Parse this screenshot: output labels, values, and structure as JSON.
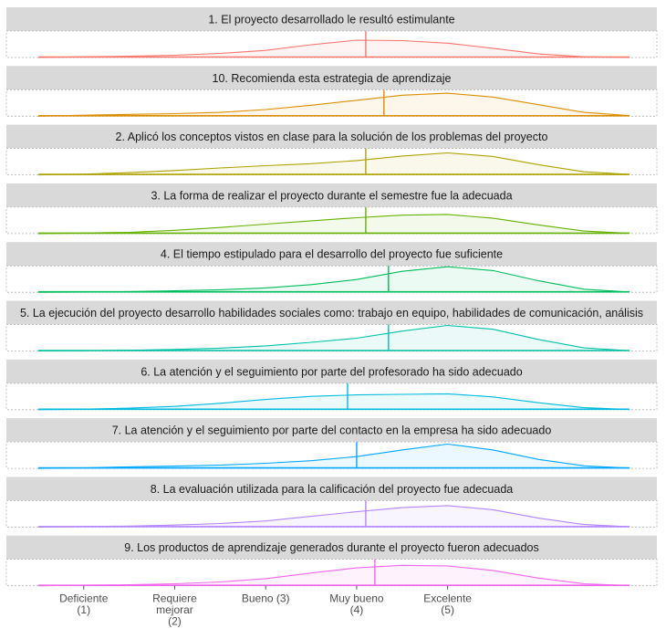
{
  "chart_data": {
    "type": "area",
    "subtype": "faceted density ridges with median line",
    "x_ticks": [
      {
        "value": 1,
        "lines": [
          "Deficiente",
          "(1)"
        ]
      },
      {
        "value": 2,
        "lines": [
          "Requiere",
          "mejorar",
          "(2)"
        ]
      },
      {
        "value": 3,
        "lines": [
          "Bueno (3)"
        ]
      },
      {
        "value": 4,
        "lines": [
          "Muy bueno",
          "(4)"
        ]
      },
      {
        "value": 5,
        "lines": [
          "Excelente",
          "(5)"
        ]
      }
    ],
    "xlim": [
      0.15,
      7.3
    ],
    "grid": false,
    "legend": "none",
    "panels": [
      {
        "title": "1. El proyecto desarrollado le resultó estimulante",
        "color": "#F8766D",
        "median": 4.1,
        "density": [
          [
            0.5,
            0
          ],
          [
            1,
            0.03
          ],
          [
            1.5,
            0.05
          ],
          [
            2,
            0.09
          ],
          [
            2.5,
            0.16
          ],
          [
            3,
            0.28
          ],
          [
            3.5,
            0.5
          ],
          [
            4,
            0.68
          ],
          [
            4.5,
            0.66
          ],
          [
            5,
            0.56
          ],
          [
            5.5,
            0.36
          ],
          [
            6,
            0.14
          ],
          [
            6.5,
            0.03
          ],
          [
            7,
            0
          ]
        ]
      },
      {
        "title": "10. Recomienda esta estrategia de aprendizaje",
        "color": "#DB8E00",
        "median": 4.3,
        "density": [
          [
            0.5,
            0
          ],
          [
            1,
            0.04
          ],
          [
            1.5,
            0.07
          ],
          [
            2,
            0.1
          ],
          [
            2.5,
            0.15
          ],
          [
            3,
            0.26
          ],
          [
            3.5,
            0.43
          ],
          [
            4,
            0.62
          ],
          [
            4.5,
            0.82
          ],
          [
            5,
            0.9
          ],
          [
            5.5,
            0.75
          ],
          [
            6,
            0.45
          ],
          [
            6.5,
            0.15
          ],
          [
            7,
            0.02
          ]
        ]
      },
      {
        "title": "2. Aplicó los conceptos vistos en clase para la solución de los problemas del proyecto",
        "color": "#AEA200",
        "median": 4.1,
        "density": [
          [
            0.5,
            0
          ],
          [
            1,
            0.03
          ],
          [
            1.5,
            0.09
          ],
          [
            2,
            0.17
          ],
          [
            2.5,
            0.27
          ],
          [
            3,
            0.36
          ],
          [
            3.5,
            0.44
          ],
          [
            4,
            0.56
          ],
          [
            4.5,
            0.74
          ],
          [
            5,
            0.86
          ],
          [
            5.5,
            0.72
          ],
          [
            6,
            0.4
          ],
          [
            6.5,
            0.12
          ],
          [
            7,
            0.02
          ]
        ]
      },
      {
        "title": "3. La forma de realizar el proyecto durante el semestre fue la adecuada",
        "color": "#64B200",
        "median": 4.1,
        "density": [
          [
            0.5,
            0
          ],
          [
            1,
            0.02
          ],
          [
            1.5,
            0.05
          ],
          [
            2,
            0.13
          ],
          [
            2.5,
            0.24
          ],
          [
            3,
            0.37
          ],
          [
            3.5,
            0.5
          ],
          [
            4,
            0.62
          ],
          [
            4.5,
            0.72
          ],
          [
            5,
            0.75
          ],
          [
            5.5,
            0.6
          ],
          [
            6,
            0.34
          ],
          [
            6.5,
            0.1
          ],
          [
            7,
            0.01
          ]
        ]
      },
      {
        "title": "4. El tiempo estipulado para el desarrollo del proyecto fue suficiente",
        "color": "#00BD5C",
        "median": 4.35,
        "density": [
          [
            0.5,
            0
          ],
          [
            1,
            0.01
          ],
          [
            1.5,
            0.03
          ],
          [
            2,
            0.06
          ],
          [
            2.5,
            0.1
          ],
          [
            3,
            0.17
          ],
          [
            3.5,
            0.3
          ],
          [
            4,
            0.5
          ],
          [
            4.5,
            0.82
          ],
          [
            5,
            1.0
          ],
          [
            5.5,
            0.85
          ],
          [
            6,
            0.45
          ],
          [
            6.5,
            0.12
          ],
          [
            7,
            0.01
          ]
        ]
      },
      {
        "title": "5. La ejecución del proyecto desarrollo habilidades sociales como: trabajo en equipo, habilidades de comunicación, análisis",
        "color": "#00C1A7",
        "median": 4.35,
        "density": [
          [
            0.5,
            0
          ],
          [
            1,
            0.01
          ],
          [
            1.5,
            0.03
          ],
          [
            2,
            0.06
          ],
          [
            2.5,
            0.11
          ],
          [
            3,
            0.2
          ],
          [
            3.5,
            0.34
          ],
          [
            4,
            0.5
          ],
          [
            4.5,
            0.78
          ],
          [
            5,
            1.0
          ],
          [
            5.5,
            0.85
          ],
          [
            6,
            0.45
          ],
          [
            6.5,
            0.12
          ],
          [
            7,
            0.01
          ]
        ]
      },
      {
        "title": "6. La atención y el seguimiento por parte del profesorado ha sido adecuado",
        "color": "#00BADE",
        "median": 3.9,
        "density": [
          [
            0.5,
            0
          ],
          [
            1,
            0.02
          ],
          [
            1.5,
            0.06
          ],
          [
            2,
            0.13
          ],
          [
            2.5,
            0.25
          ],
          [
            3,
            0.4
          ],
          [
            3.5,
            0.52
          ],
          [
            4,
            0.58
          ],
          [
            4.5,
            0.6
          ],
          [
            5,
            0.62
          ],
          [
            5.5,
            0.5
          ],
          [
            6,
            0.27
          ],
          [
            6.5,
            0.08
          ],
          [
            7,
            0.01
          ]
        ]
      },
      {
        "title": "7. La atención y el seguimiento por parte del contacto en la empresa ha sido adecuado",
        "color": "#00A6FF",
        "median": 4.0,
        "density": [
          [
            0.5,
            0
          ],
          [
            1,
            0.02
          ],
          [
            1.5,
            0.06
          ],
          [
            2,
            0.09
          ],
          [
            2.5,
            0.13
          ],
          [
            3,
            0.2
          ],
          [
            3.5,
            0.3
          ],
          [
            4,
            0.46
          ],
          [
            4.5,
            0.72
          ],
          [
            5,
            0.95
          ],
          [
            5.5,
            0.72
          ],
          [
            6,
            0.35
          ],
          [
            6.5,
            0.1
          ],
          [
            7,
            0.01
          ]
        ]
      },
      {
        "title": "8. La evaluación utilizada para la calificación del proyecto fue adecuada",
        "color": "#B385FF",
        "median": 4.1,
        "density": [
          [
            0.5,
            0
          ],
          [
            1,
            0.02
          ],
          [
            1.5,
            0.04
          ],
          [
            2,
            0.08
          ],
          [
            2.5,
            0.14
          ],
          [
            3,
            0.24
          ],
          [
            3.5,
            0.42
          ],
          [
            4,
            0.6
          ],
          [
            4.5,
            0.76
          ],
          [
            5,
            0.84
          ],
          [
            5.5,
            0.68
          ],
          [
            6,
            0.35
          ],
          [
            6.5,
            0.1
          ],
          [
            7,
            0.01
          ]
        ]
      },
      {
        "title": "9. Los productos de aprendizaje generados durante el proyecto fueron adecuados",
        "color": "#EF67EB",
        "median": 4.2,
        "density": [
          [
            0.5,
            0
          ],
          [
            1,
            0.02
          ],
          [
            1.5,
            0.04
          ],
          [
            2,
            0.08
          ],
          [
            2.5,
            0.15
          ],
          [
            3,
            0.28
          ],
          [
            3.5,
            0.5
          ],
          [
            4,
            0.7
          ],
          [
            4.5,
            0.8
          ],
          [
            5,
            0.78
          ],
          [
            5.5,
            0.6
          ],
          [
            6,
            0.3
          ],
          [
            6.5,
            0.08
          ],
          [
            7,
            0.01
          ]
        ]
      }
    ]
  }
}
